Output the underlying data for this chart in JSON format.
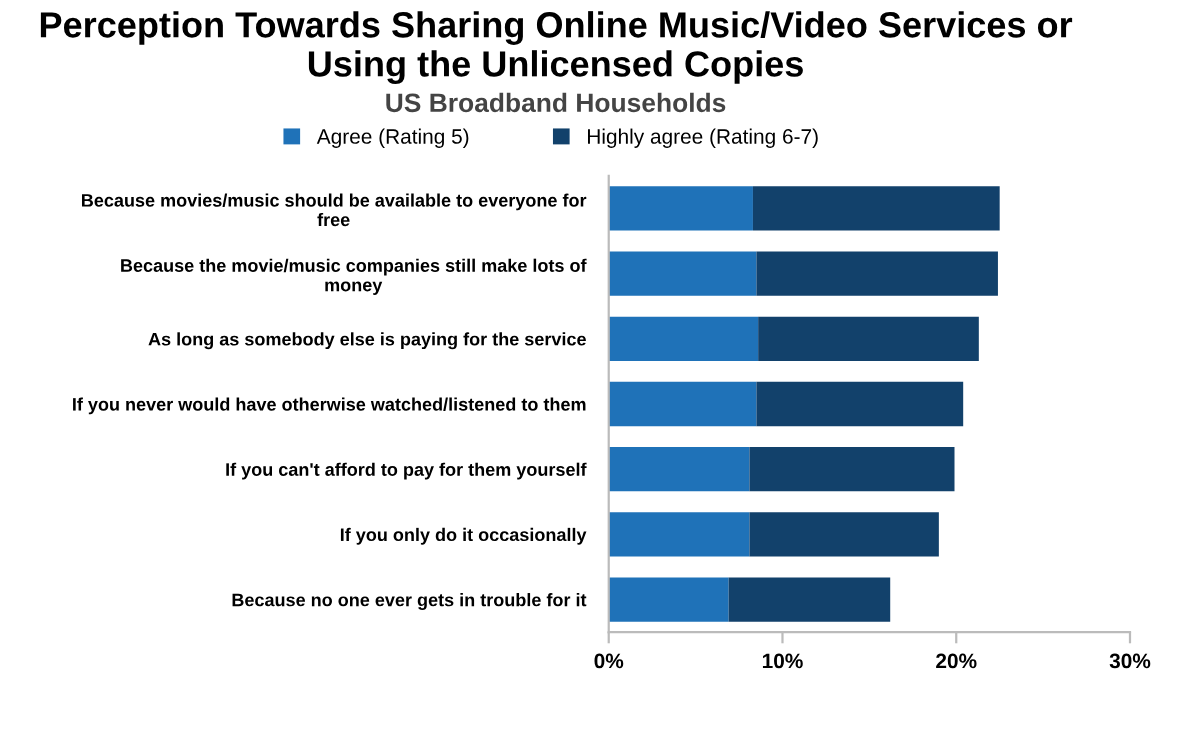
{
  "chart_data": {
    "type": "bar",
    "orientation": "horizontal",
    "stacked": true,
    "title": "Perception Towards Sharing Online Music/Video Services or Using the Unlicensed Copies",
    "subtitle": "US Broadband Households",
    "categories": [
      "Because movies/music should be available to everyone for\nfree",
      "Because the movie/music companies still make lots of\nmoney",
      "As long as somebody else is paying for the service",
      "If you never would have otherwise watched/listened to them",
      "If you can't afford to pay for them yourself",
      "If you only do it occasionally",
      "Because no one ever gets in trouble for it"
    ],
    "series": [
      {
        "name": "Agree (Rating 5)",
        "color": "#1f72b8",
        "values": [
          8.3,
          8.5,
          8.6,
          8.5,
          8.1,
          8.1,
          6.9
        ]
      },
      {
        "name": "Highly agree (Rating 6-7)",
        "color": "#12416b",
        "values": [
          14.2,
          13.9,
          12.7,
          11.9,
          11.8,
          10.9,
          9.3
        ]
      }
    ],
    "xlim": [
      0,
      30
    ],
    "xticks": [
      {
        "value": 0,
        "label": "0%"
      },
      {
        "value": 10,
        "label": "10%"
      },
      {
        "value": 20,
        "label": "20%"
      },
      {
        "value": 30,
        "label": "30%"
      }
    ],
    "grid": false,
    "legend": "top left"
  }
}
